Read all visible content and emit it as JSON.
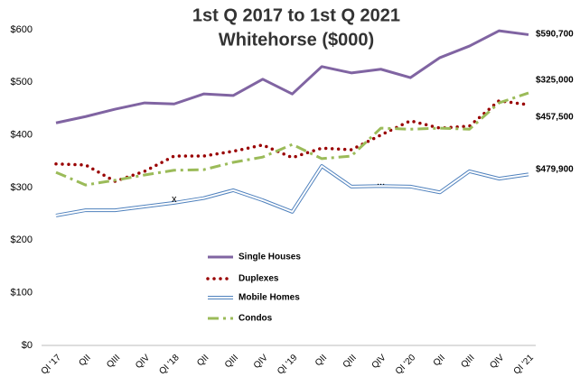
{
  "chart_data": {
    "type": "line",
    "title": "1st Q 2017 to 1st Q 2021",
    "subtitle": "Whitehorse ($000)",
    "categories": [
      "QI '17",
      "QII",
      "QIII",
      "QIV",
      "QI '18",
      "QII",
      "QIII",
      "QIV",
      "QI '19",
      "QII",
      "QIII",
      "QIV",
      "QI '20",
      "QII",
      "QIII",
      "QIV",
      "QI '21"
    ],
    "series": [
      {
        "name": "Single Houses",
        "color": "#8064a2",
        "style": "solid",
        "values": [
          423,
          435,
          449,
          461,
          459,
          478,
          475,
          506,
          478,
          530,
          518,
          525,
          509,
          547,
          569,
          598,
          590.7
        ],
        "value_labels": [
          null,
          null,
          null,
          null,
          null,
          null,
          null,
          null,
          null,
          null,
          null,
          null,
          null,
          null,
          null,
          null,
          "$590,700"
        ]
      },
      {
        "name": "Duplexes",
        "color": "#990000",
        "style": "dotted",
        "values": [
          345,
          343,
          312,
          331,
          360,
          360,
          369,
          381,
          357,
          375,
          372,
          400,
          427,
          413,
          417,
          465,
          457.5
        ],
        "value_labels": [
          null,
          null,
          null,
          null,
          null,
          null,
          null,
          null,
          null,
          null,
          null,
          null,
          null,
          null,
          null,
          null,
          "$457,500"
        ]
      },
      {
        "name": "Mobile Homes",
        "color": "#4f81bd",
        "style": "double",
        "values": [
          247,
          257,
          257,
          264,
          271,
          280,
          295,
          276,
          254,
          341,
          302,
          303,
          302,
          291,
          331,
          317,
          325
        ],
        "value_labels": [
          null,
          null,
          null,
          null,
          null,
          null,
          null,
          null,
          null,
          null,
          null,
          null,
          null,
          null,
          null,
          null,
          "$325,000"
        ]
      },
      {
        "name": "Condos",
        "color": "#9bbb59",
        "style": "dashdot",
        "values": [
          329,
          305,
          314,
          324,
          333,
          334,
          348,
          358,
          382,
          355,
          360,
          413,
          411,
          413,
          411,
          461,
          479.9
        ],
        "value_labels": [
          null,
          null,
          null,
          null,
          null,
          null,
          null,
          null,
          null,
          null,
          null,
          null,
          null,
          null,
          null,
          null,
          "$479,900"
        ]
      }
    ],
    "annotations": [
      {
        "text": "x",
        "category": 4,
        "value": 271
      },
      {
        "text": "...",
        "category": 11,
        "value": 303
      }
    ],
    "ylim": [
      0,
      600
    ],
    "yticks": [
      {
        "value": 0,
        "label": "$0"
      },
      {
        "value": 100,
        "label": "$100"
      },
      {
        "value": 200,
        "label": "$200"
      },
      {
        "value": 300,
        "label": "$300"
      },
      {
        "value": 400,
        "label": "$400"
      },
      {
        "value": 500,
        "label": "$500"
      },
      {
        "value": 600,
        "label": "$600"
      }
    ],
    "grid": false
  }
}
